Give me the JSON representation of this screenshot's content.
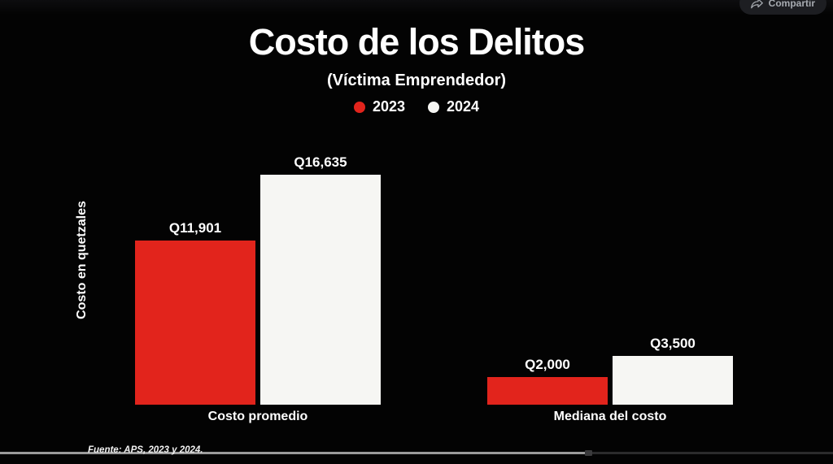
{
  "toolbar": {
    "share_label": "Compartir"
  },
  "chart_data": {
    "type": "bar",
    "title": "Costo de los Delitos",
    "subtitle": "(Víctima Emprendedor)",
    "ylabel": "Costo en quetzales",
    "xlabel": "",
    "categories": [
      "Costo promedio",
      "Mediana del costo"
    ],
    "series": [
      {
        "name": "2023",
        "color": "#e2241c",
        "values": [
          11901,
          2000
        ],
        "value_labels": [
          "Q11,901",
          "Q2,000"
        ]
      },
      {
        "name": "2024",
        "color": "#f6f6f3",
        "values": [
          16635,
          3500
        ],
        "value_labels": [
          "Q16,635",
          "Q3,500"
        ]
      }
    ],
    "ylim": [
      0,
      17000
    ],
    "grid": false,
    "legend_position": "top",
    "background_color": "#030303",
    "source": "Fuente: APS, 2023 y 2024."
  },
  "player": {
    "progress_percent": 70.3
  }
}
